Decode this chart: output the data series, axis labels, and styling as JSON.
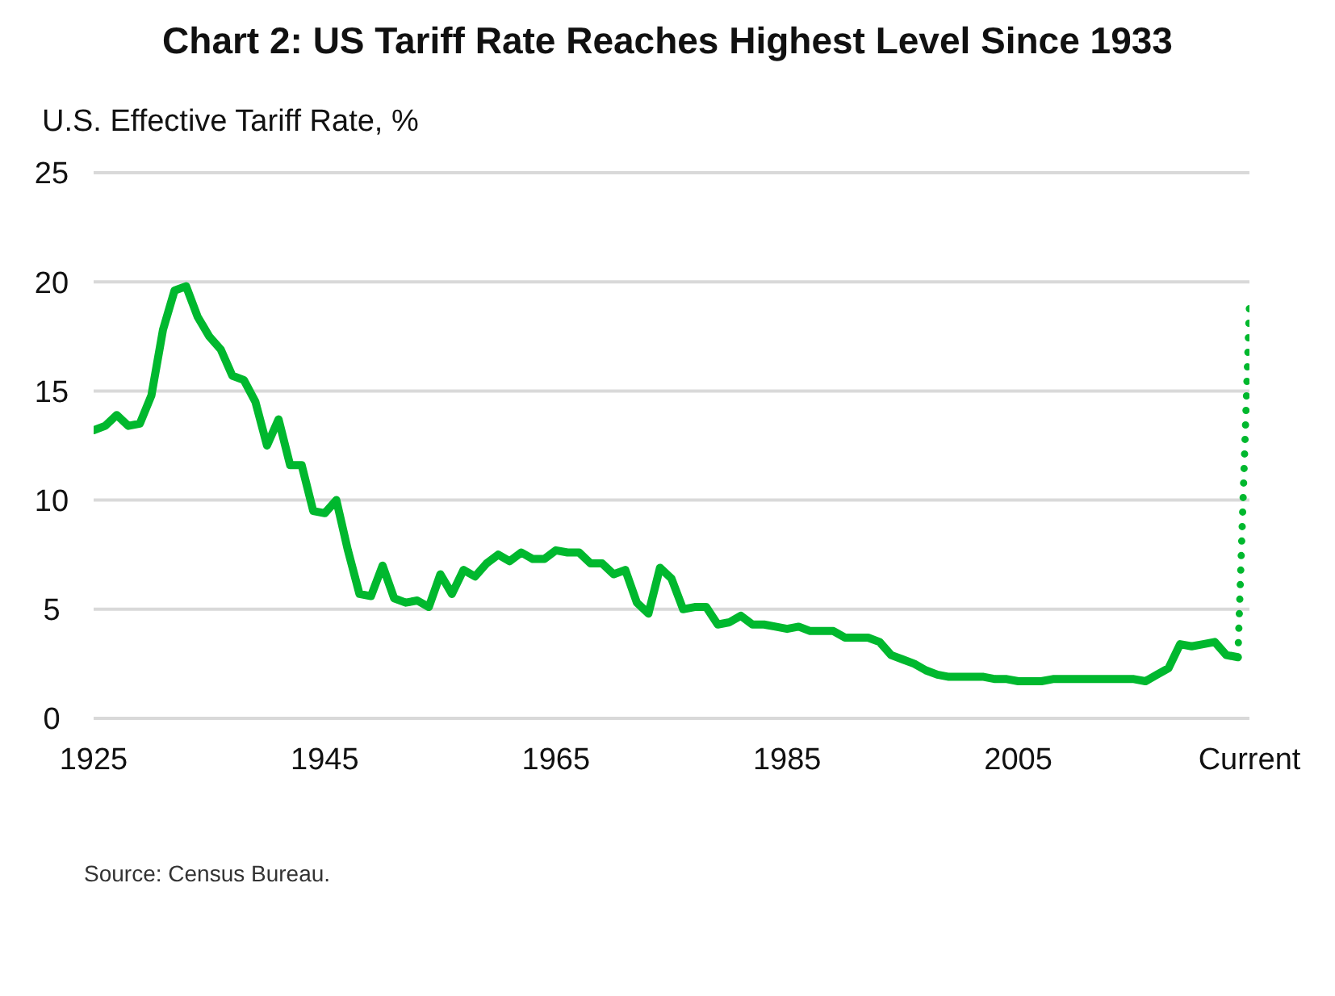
{
  "chart_data": {
    "type": "line",
    "title": "Chart 2: US Tariff Rate Reaches Highest Level Since 1933",
    "ylabel": "U.S. Effective Tariff Rate, %",
    "annotations": [
      "Source: Census Bureau."
    ],
    "x": [
      1925,
      1926,
      1927,
      1928,
      1929,
      1930,
      1931,
      1932,
      1933,
      1934,
      1935,
      1936,
      1937,
      1938,
      1939,
      1940,
      1941,
      1942,
      1943,
      1944,
      1945,
      1946,
      1947,
      1948,
      1949,
      1950,
      1951,
      1952,
      1953,
      1954,
      1955,
      1956,
      1957,
      1958,
      1959,
      1960,
      1961,
      1962,
      1963,
      1964,
      1965,
      1966,
      1967,
      1968,
      1969,
      1970,
      1971,
      1972,
      1973,
      1974,
      1975,
      1976,
      1977,
      1978,
      1979,
      1980,
      1981,
      1982,
      1983,
      1984,
      1985,
      1986,
      1987,
      1988,
      1989,
      1990,
      1991,
      1992,
      1993,
      1994,
      1995,
      1996,
      1997,
      1998,
      1999,
      2000,
      2001,
      2002,
      2003,
      2004,
      2005,
      2006,
      2007,
      2008,
      2009,
      2010,
      2011,
      2012,
      2013,
      2014,
      2015,
      2016,
      2017,
      2018,
      2019,
      2020,
      2021,
      2022,
      2023,
      2024
    ],
    "series": [
      {
        "color": "#00b82e",
        "line_style": "solid",
        "values": [
          13.2,
          13.4,
          13.9,
          13.4,
          13.5,
          14.8,
          17.8,
          19.6,
          19.8,
          18.4,
          17.5,
          16.9,
          15.7,
          15.5,
          14.5,
          12.5,
          13.7,
          11.6,
          11.6,
          9.5,
          9.4,
          10.0,
          7.7,
          5.7,
          5.6,
          7.0,
          5.5,
          5.3,
          5.4,
          5.1,
          6.6,
          5.7,
          6.8,
          6.5,
          7.1,
          7.5,
          7.2,
          7.6,
          7.3,
          7.3,
          7.7,
          7.6,
          7.6,
          7.1,
          7.1,
          6.6,
          6.8,
          5.3,
          4.8,
          6.9,
          6.4,
          5.0,
          5.1,
          5.1,
          4.3,
          4.4,
          4.7,
          4.3,
          4.3,
          4.2,
          4.1,
          4.2,
          4.0,
          4.0,
          4.0,
          3.7,
          3.7,
          3.7,
          3.5,
          2.9,
          2.7,
          2.5,
          2.2,
          2.0,
          1.9,
          1.9,
          1.9,
          1.9,
          1.8,
          1.8,
          1.7,
          1.7,
          1.7,
          1.8,
          1.8,
          1.8,
          1.8,
          1.8,
          1.8,
          1.8,
          1.8,
          1.7,
          2.0,
          2.3,
          3.4,
          3.3,
          3.4,
          3.5,
          2.9,
          2.8
        ]
      },
      {
        "color": "#00b82e",
        "line_style": "dotted",
        "x": [
          2024,
          2025
        ],
        "values": [
          2.8,
          18.9
        ]
      }
    ],
    "xlim": [
      1925,
      2025
    ],
    "xticks": [
      1925,
      1945,
      1965,
      1985,
      2005,
      {
        "value": 2025,
        "label": "Current"
      }
    ],
    "ylim": [
      0,
      25
    ],
    "yticks": [
      0,
      5,
      10,
      15,
      20,
      25
    ],
    "grid": "y",
    "marker": "none"
  }
}
